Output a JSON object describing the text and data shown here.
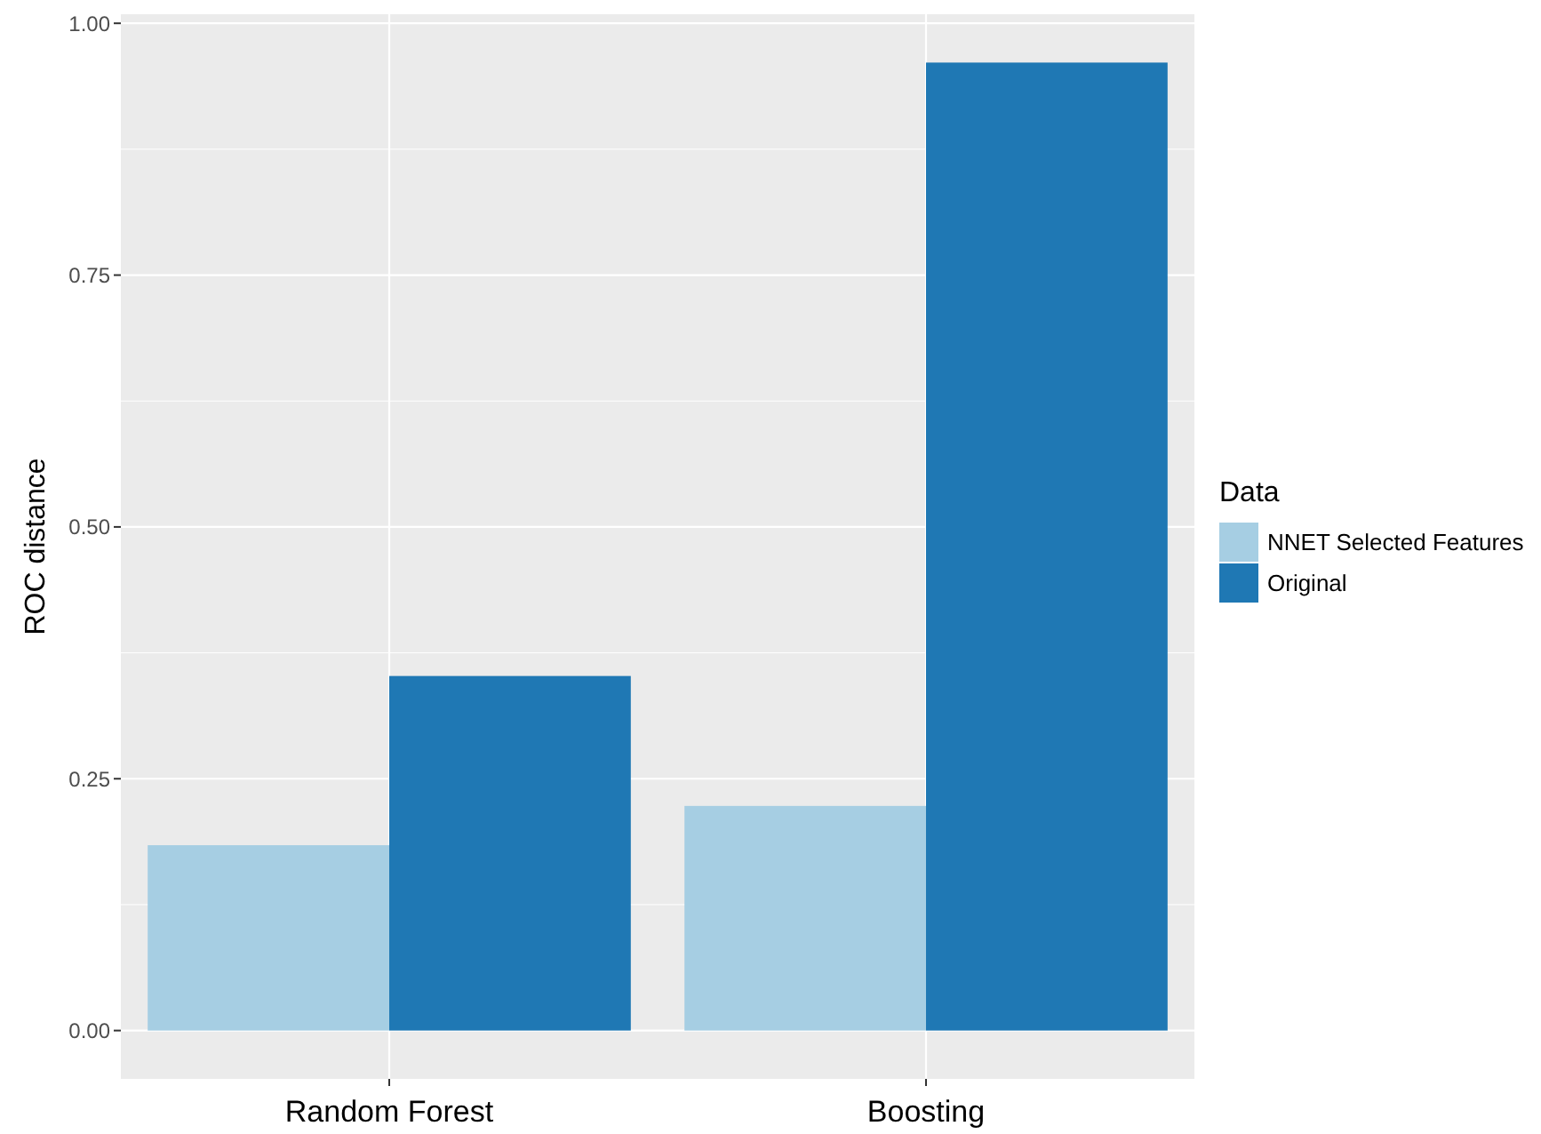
{
  "chart_data": {
    "type": "bar",
    "ylabel": "ROC distance",
    "legend_title": "Data",
    "categories": [
      "Random Forest",
      "Boosting"
    ],
    "series": [
      {
        "name": "NNET Selected Features",
        "color": "#a6cee3",
        "values": [
          0.184,
          0.223
        ]
      },
      {
        "name": "Original",
        "color": "#1f78b4",
        "values": [
          0.352,
          0.961
        ]
      }
    ],
    "ylim": [
      -0.048,
      1.009
    ],
    "yticks": [
      {
        "value": 0,
        "label": "0.00"
      },
      {
        "value": 0.25,
        "label": "0.25"
      },
      {
        "value": 0.5,
        "label": "0.50"
      },
      {
        "value": 0.75,
        "label": "0.75"
      },
      {
        "value": 1,
        "label": "1.00"
      }
    ],
    "grid": true,
    "legend": "right"
  }
}
